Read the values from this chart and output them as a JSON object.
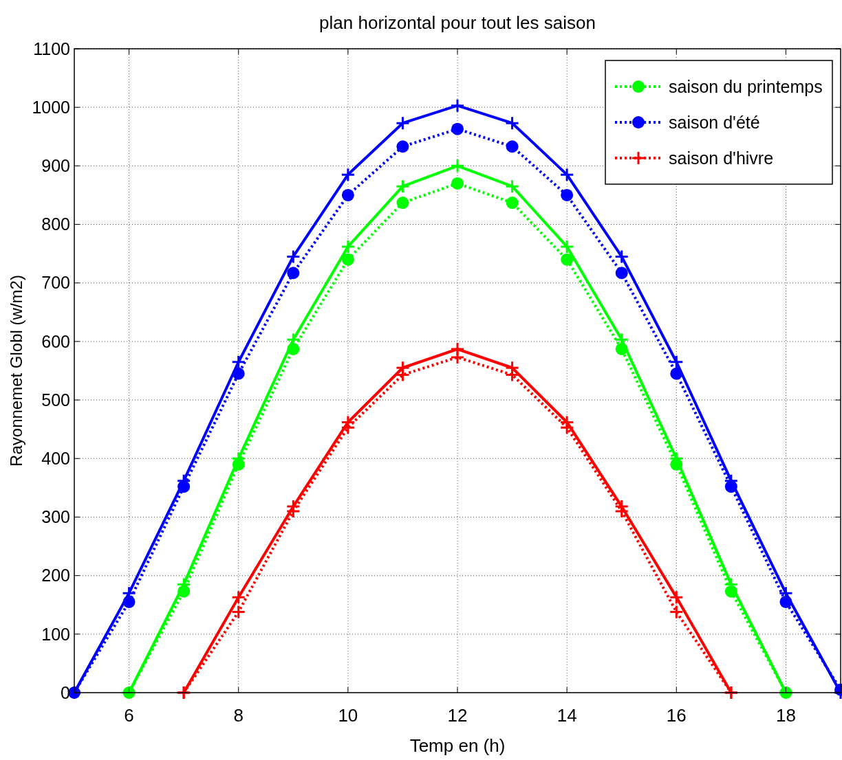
{
  "chart_data": {
    "type": "line",
    "title": "plan horizontal pour tout les saison",
    "xlabel": "Temp en (h)",
    "ylabel": "Rayonnemet Globl (w/m2)",
    "xlim": [
      5,
      19
    ],
    "xticks": [
      6,
      8,
      10,
      12,
      14,
      16,
      18
    ],
    "ylim": [
      0,
      1100
    ],
    "yticks": [
      0,
      100,
      200,
      300,
      400,
      500,
      600,
      700,
      800,
      900,
      1000,
      1100
    ],
    "grid": true,
    "legend": "top right",
    "series": [
      {
        "name": "saison du printemps",
        "color": "#00ff00",
        "line_style": "dotted",
        "marker": "circle",
        "x": [
          6,
          7,
          8,
          9,
          10,
          11,
          12,
          13,
          14,
          15,
          16,
          17,
          18
        ],
        "values": [
          0,
          173,
          390,
          587,
          740,
          837,
          870,
          837,
          740,
          587,
          390,
          173,
          0
        ]
      },
      {
        "name": "saison d'été",
        "color": "#0000ff",
        "line_style": "dotted",
        "marker": "circle",
        "x": [
          5,
          6,
          7,
          8,
          9,
          10,
          11,
          12,
          13,
          14,
          15,
          16,
          17,
          18,
          19
        ],
        "values": [
          0,
          155,
          352,
          545,
          717,
          850,
          933,
          963,
          933,
          850,
          717,
          545,
          352,
          155,
          5
        ]
      },
      {
        "name": "saison d'hivre",
        "color": "#ff0000",
        "line_style": "dotted",
        "marker": "cross",
        "x": [
          7,
          8,
          9,
          10,
          11,
          12,
          13,
          14,
          15,
          16,
          17
        ],
        "values": [
          0,
          138,
          310,
          453,
          543,
          573,
          543,
          453,
          310,
          138,
          0
        ]
      },
      {
        "color": "#00ff00",
        "line_style": "solid",
        "marker": "cross",
        "x": [
          6,
          7,
          8,
          9,
          10,
          11,
          12,
          13,
          14,
          15,
          16,
          17,
          18
        ],
        "values": [
          0,
          185,
          400,
          603,
          762,
          865,
          900,
          865,
          762,
          603,
          400,
          185,
          0
        ]
      },
      {
        "color": "#0000ff",
        "line_style": "solid",
        "marker": "cross",
        "x": [
          5,
          6,
          7,
          8,
          9,
          10,
          11,
          12,
          13,
          14,
          15,
          16,
          17,
          18,
          19
        ],
        "values": [
          0,
          170,
          362,
          565,
          745,
          885,
          973,
          1003,
          973,
          885,
          745,
          565,
          362,
          170,
          0
        ]
      },
      {
        "color": "#ff0000",
        "line_style": "solid",
        "marker": "cross",
        "x": [
          7,
          8,
          9,
          10,
          11,
          12,
          13,
          14,
          15,
          16,
          17
        ],
        "values": [
          0,
          163,
          318,
          462,
          555,
          587,
          555,
          462,
          318,
          163,
          0
        ]
      }
    ]
  }
}
